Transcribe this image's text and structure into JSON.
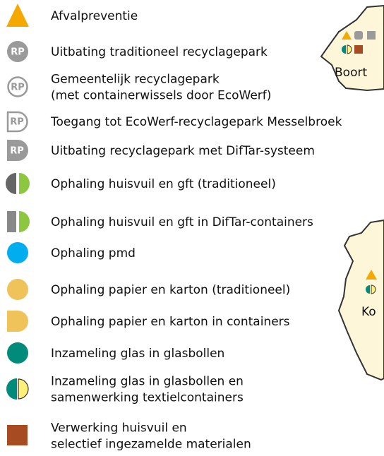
{
  "legend": {
    "items": [
      {
        "lines": [
          "Afvalpreventie"
        ]
      },
      {
        "icon": "RP",
        "lines": [
          "Uitbating traditioneel recyclagepark"
        ]
      },
      {
        "icon": "RP",
        "lines": [
          "Gemeentelijk recyclagepark",
          "(met containerwissels door EcoWerf)"
        ]
      },
      {
        "icon": "RP",
        "lines": [
          "Toegang tot EcoWerf-recyclagepark Messelbroek"
        ]
      },
      {
        "icon": "RP",
        "lines": [
          "Uitbating recyclagepark met DifTar-systeem"
        ]
      },
      {
        "lines": [
          "Ophaling huisvuil en gft (traditioneel)"
        ]
      },
      {
        "lines": [
          "Ophaling huisvuil en gft in DifTar-containers"
        ]
      },
      {
        "lines": [
          "Ophaling pmd"
        ]
      },
      {
        "lines": [
          "Ophaling papier en karton (traditioneel)"
        ]
      },
      {
        "lines": [
          "Ophaling papier en karton in containers"
        ]
      },
      {
        "lines": [
          "Inzameling glas in glasbollen"
        ]
      },
      {
        "lines": [
          "Inzameling glas in glasbollen en",
          "samenwerking textielcontainers"
        ]
      },
      {
        "lines": [
          "Verwerking huisvuil en",
          "selectief ingezamelde materialen"
        ]
      }
    ]
  },
  "map": {
    "labels": [
      "Boort",
      "Ko"
    ]
  }
}
